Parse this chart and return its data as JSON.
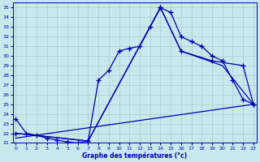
{
  "xlabel": "Graphe des températures (°c)",
  "bg_color": "#c8e8ec",
  "grid_color": "#a8ccd0",
  "line_color": "#0000aa",
  "marker": "+",
  "markersize": 4,
  "linewidth": 0.9,
  "xlim": [
    -0.3,
    23.3
  ],
  "ylim": [
    21.0,
    35.5
  ],
  "xticks": [
    0,
    1,
    2,
    3,
    4,
    5,
    6,
    7,
    8,
    9,
    10,
    11,
    12,
    13,
    14,
    15,
    16,
    17,
    18,
    19,
    20,
    21,
    22,
    23
  ],
  "yticks": [
    21,
    22,
    23,
    24,
    25,
    26,
    27,
    28,
    29,
    30,
    31,
    32,
    33,
    34,
    35
  ],
  "curve1_x": [
    0,
    1,
    2,
    3,
    4,
    5,
    6,
    7,
    8,
    9,
    10,
    11,
    12,
    13,
    14,
    15,
    16,
    17,
    18,
    19,
    20,
    21,
    22,
    23
  ],
  "curve1_y": [
    23.5,
    22.0,
    21.8,
    21.5,
    21.3,
    21.1,
    21.0,
    21.2,
    27.5,
    28.5,
    30.5,
    30.8,
    31.0,
    33.0,
    35.0,
    34.5,
    32.0,
    31.5,
    31.0,
    30.0,
    29.5,
    27.5,
    25.5,
    25.0
  ],
  "curve2_x": [
    0,
    7,
    14,
    16,
    19,
    22,
    23
  ],
  "curve2_y": [
    22.0,
    21.2,
    35.0,
    30.5,
    29.5,
    29.0,
    25.0
  ],
  "curve3_x": [
    0,
    7,
    14,
    16,
    20,
    23
  ],
  "curve3_y": [
    22.0,
    21.2,
    35.0,
    30.5,
    29.0,
    25.0
  ],
  "curve4_x": [
    0,
    23
  ],
  "curve4_y": [
    21.5,
    25.0
  ]
}
